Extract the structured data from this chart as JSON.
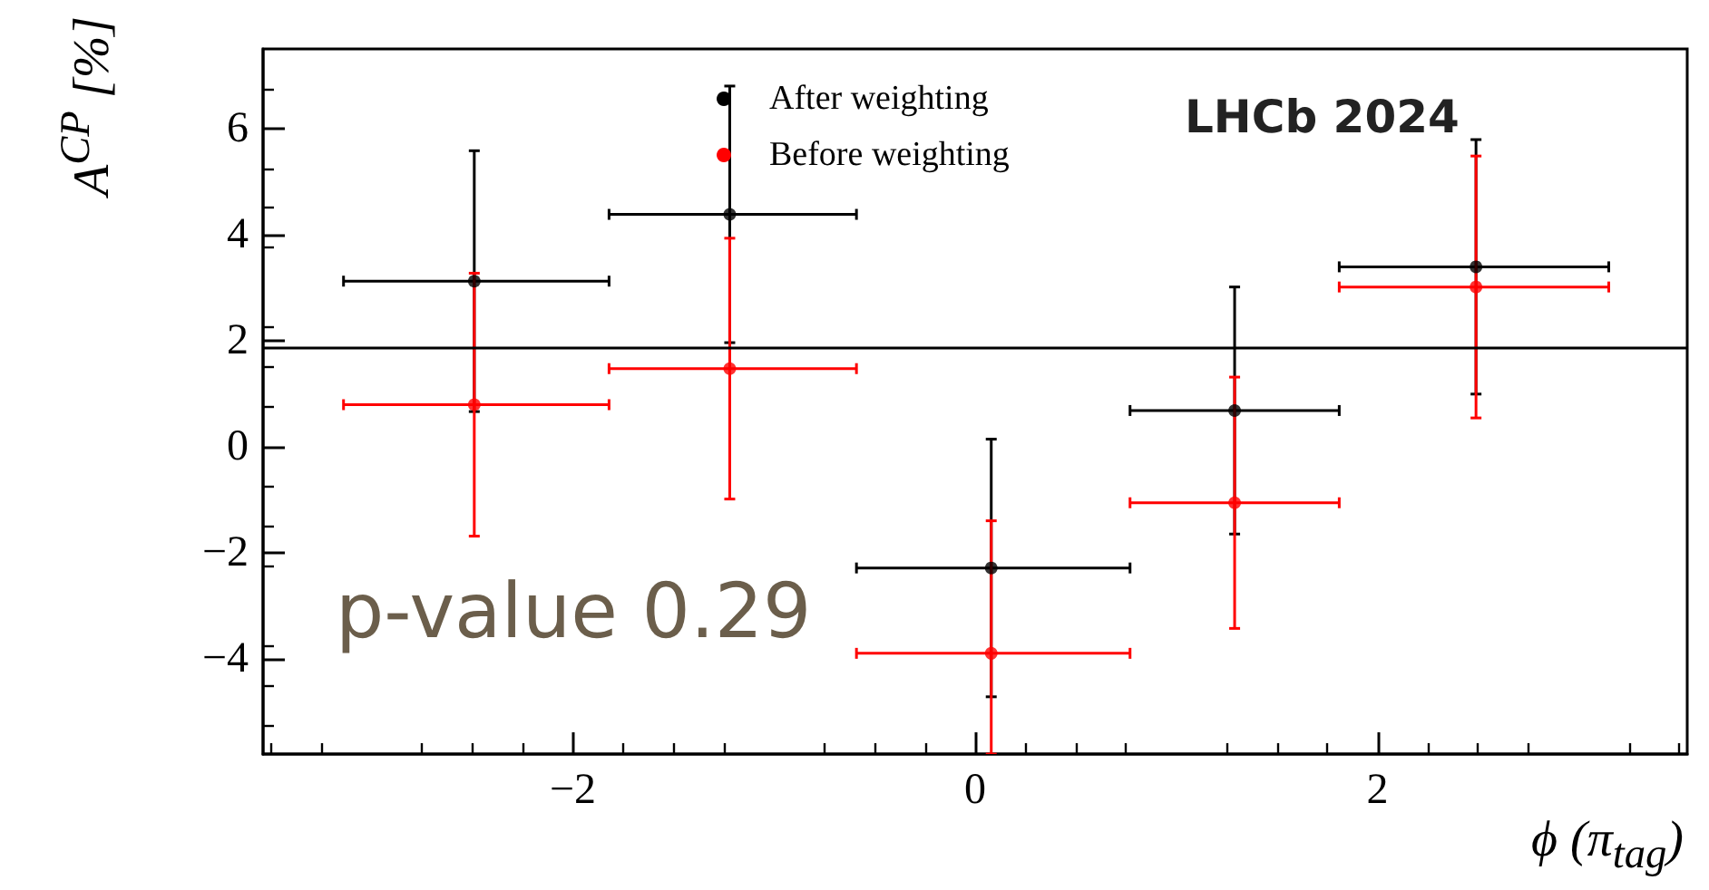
{
  "chart_data": {
    "type": "scatter",
    "xlabel": "ϕ (π$_{tag}$)",
    "ylabel": "A$^{CP}$ [%]",
    "xlim": [
      -3.54,
      3.54
    ],
    "xticks": [
      -2,
      0,
      2
    ],
    "ylim": [
      -5.8,
      7.5
    ],
    "yticks": [
      -4,
      -2,
      0,
      2,
      4,
      6
    ],
    "x": [
      -2.49,
      -1.22,
      0.08,
      1.29,
      2.49
    ],
    "series": [
      {
        "name": "After weighting",
        "color": "#000000",
        "values": [
          3.12,
          4.38,
          -2.29,
          0.68,
          3.39
        ],
        "errors": [
          2.46,
          2.42,
          2.43,
          2.33,
          2.4
        ],
        "xerrors": [
          [
            -3.14,
            -1.82
          ],
          [
            -1.82,
            -0.59
          ],
          [
            -0.59,
            0.77
          ],
          [
            0.77,
            1.81
          ],
          [
            1.81,
            3.15
          ]
        ]
      },
      {
        "name": "Before weighting",
        "color": "#ff0000",
        "values": [
          0.79,
          1.47,
          -3.9,
          -1.06,
          3.01
        ],
        "errors": [
          2.48,
          2.46,
          [
            -5.8,
            -1.4
          ],
          2.37,
          2.47
        ],
        "xerrors": [
          [
            -3.14,
            -1.82
          ],
          [
            -1.82,
            -0.59
          ],
          [
            -0.59,
            0.77
          ],
          [
            0.77,
            1.81
          ],
          [
            1.81,
            3.15
          ]
        ]
      }
    ],
    "ref_lines": [
      {
        "axis": "y",
        "value": 1.86,
        "color": "#000000"
      }
    ],
    "annotations": [
      "p-value 0.29",
      "LHCb 2024"
    ],
    "legend": "top",
    "marker": "circle",
    "grid": false
  }
}
